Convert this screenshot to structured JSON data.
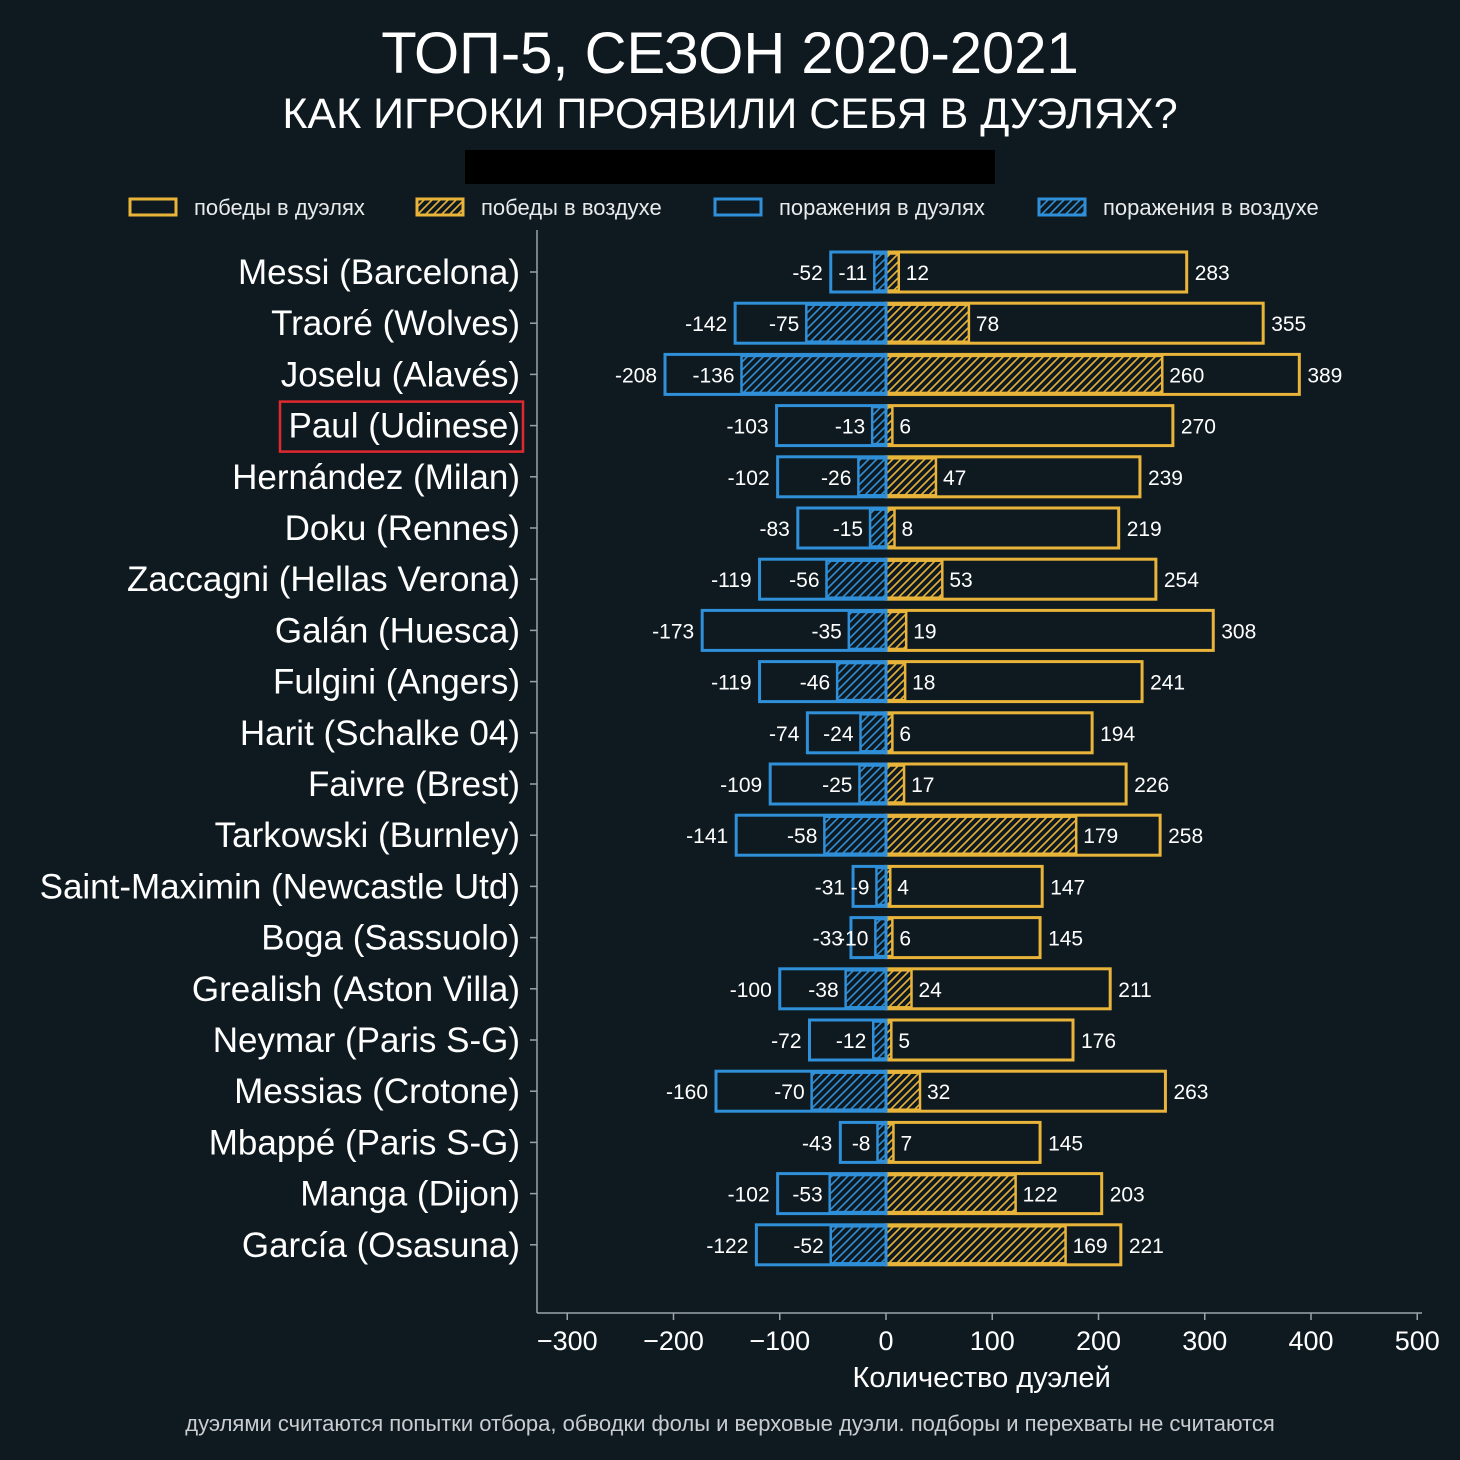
{
  "title": "ТОП-5, СЕЗОН 2020-2021",
  "subtitle": "КАК ИГРОКИ ПРОЯВИЛИ СЕБЯ В ДУЭЛЯХ?",
  "footnote": "дуэлями считаются попытки отбора, обводки фолы и верховые дуэли. подборы и перехваты не считаются",
  "colors": {
    "background": "#0f1a20",
    "wins": "#e8b43a",
    "losses": "#2f8fd8",
    "axis": "#9aa3a8",
    "highlight_box": "#e0282f"
  },
  "chart_data": {
    "type": "bar",
    "orientation": "horizontal-diverging",
    "xlabel": "Количество дуэлей",
    "ylabel": "",
    "xlim": [
      -300,
      500
    ],
    "xticks": [
      -300,
      -200,
      -100,
      0,
      100,
      200,
      300,
      400,
      500
    ],
    "xtick_labels": [
      "−300",
      "−200",
      "−100",
      "0",
      "100",
      "200",
      "300",
      "400",
      "500"
    ],
    "grid": false,
    "legend_position": "top",
    "highlighted_category": "Paul (Udinese)",
    "categories": [
      "Messi (Barcelona)",
      "Traoré (Wolves)",
      "Joselu (Alavés)",
      "Paul (Udinese)",
      "Hernández (Milan)",
      "Doku (Rennes)",
      "Zaccagni (Hellas Verona)",
      "Galán (Huesca)",
      "Fulgini (Angers)",
      "Harit (Schalke 04)",
      "Faivre (Brest)",
      "Tarkowski (Burnley)",
      "Saint-Maximin (Newcastle Utd)",
      "Boga (Sassuolo)",
      "Grealish (Aston Villa)",
      "Neymar (Paris S-G)",
      "Messias (Crotone)",
      "Mbappé (Paris S-G)",
      "Manga (Dijon)",
      "García (Osasuna)"
    ],
    "series": [
      {
        "name": "победы в дуэлях",
        "style": "outline",
        "color": "#e8b43a",
        "values": [
          283,
          355,
          389,
          270,
          239,
          219,
          254,
          308,
          241,
          194,
          226,
          258,
          147,
          145,
          211,
          176,
          263,
          145,
          203,
          221
        ]
      },
      {
        "name": "победы в воздухе",
        "style": "hatched",
        "color": "#e8b43a",
        "values": [
          12,
          78,
          260,
          6,
          47,
          8,
          53,
          19,
          18,
          6,
          17,
          179,
          4,
          6,
          24,
          5,
          32,
          7,
          122,
          169
        ]
      },
      {
        "name": "поражения в дуэлях",
        "style": "outline",
        "color": "#2f8fd8",
        "values": [
          -52,
          -142,
          -208,
          -103,
          -102,
          -83,
          -119,
          -173,
          -119,
          -74,
          -109,
          -141,
          -31,
          -33,
          -100,
          -72,
          -160,
          -43,
          -102,
          -122
        ]
      },
      {
        "name": "поражения в воздухе",
        "style": "hatched",
        "color": "#2f8fd8",
        "values": [
          -11,
          -75,
          -136,
          -13,
          -26,
          -15,
          -56,
          -35,
          -46,
          -24,
          -25,
          -58,
          -9,
          -10,
          -38,
          -12,
          -70,
          -8,
          -53,
          -52
        ]
      }
    ]
  }
}
